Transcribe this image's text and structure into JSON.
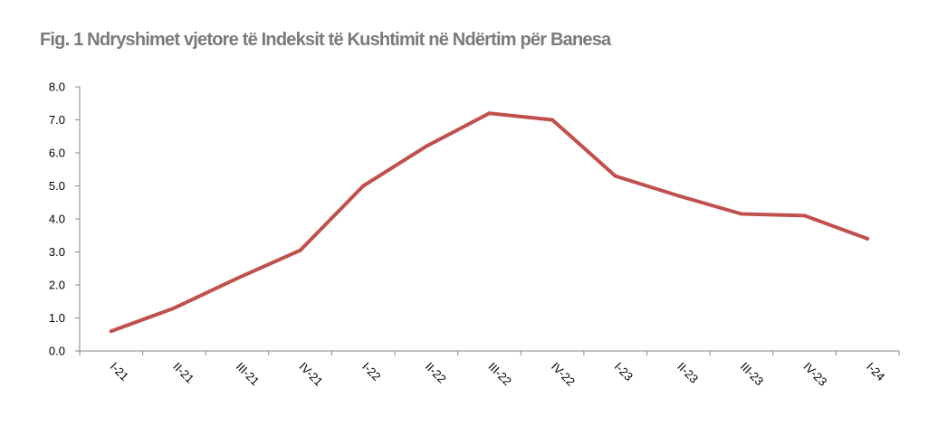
{
  "chart_data": {
    "type": "line",
    "title": "Fig. 1 Ndryshimet vjetore të Indeksit të Kushtimit në Ndërtim për Banesa",
    "xlabel": "",
    "ylabel": "",
    "categories": [
      "I-21",
      "II-21",
      "III-21",
      "IV-21",
      "I-22",
      "II-22",
      "III-22",
      "IV-22",
      "I-23",
      "II-23",
      "III-23",
      "IV-23",
      "I-24"
    ],
    "series": [
      {
        "values": [
          0.6,
          1.3,
          2.2,
          3.05,
          5.0,
          6.2,
          7.2,
          7.0,
          5.3,
          4.7,
          4.15,
          4.1,
          3.4
        ]
      }
    ],
    "ylim": [
      0,
      8
    ],
    "yticks": [
      "0.0",
      "1.0",
      "2.0",
      "3.0",
      "4.0",
      "5.0",
      "6.0",
      "7.0",
      "8.0"
    ],
    "grid": false,
    "legend": "none",
    "line_color": "#c0504d",
    "axis_color": "#868686"
  }
}
